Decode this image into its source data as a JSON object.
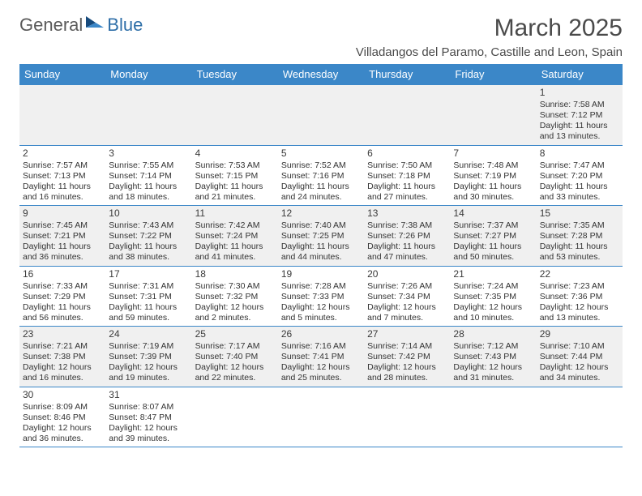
{
  "logo": {
    "general": "General",
    "blue": "Blue"
  },
  "title": "March 2025",
  "location": "Villadangos del Paramo, Castille and Leon, Spain",
  "dayHeaders": [
    "Sunday",
    "Monday",
    "Tuesday",
    "Wednesday",
    "Thursday",
    "Friday",
    "Saturday"
  ],
  "colors": {
    "headerBg": "#3b87c8",
    "headerFg": "#ffffff",
    "rowAlt": "#f0f0f0",
    "border": "#3b87c8"
  },
  "weeks": [
    [
      null,
      null,
      null,
      null,
      null,
      null,
      {
        "n": "1",
        "sr": "Sunrise: 7:58 AM",
        "ss": "Sunset: 7:12 PM",
        "dl1": "Daylight: 11 hours",
        "dl2": "and 13 minutes."
      }
    ],
    [
      {
        "n": "2",
        "sr": "Sunrise: 7:57 AM",
        "ss": "Sunset: 7:13 PM",
        "dl1": "Daylight: 11 hours",
        "dl2": "and 16 minutes."
      },
      {
        "n": "3",
        "sr": "Sunrise: 7:55 AM",
        "ss": "Sunset: 7:14 PM",
        "dl1": "Daylight: 11 hours",
        "dl2": "and 18 minutes."
      },
      {
        "n": "4",
        "sr": "Sunrise: 7:53 AM",
        "ss": "Sunset: 7:15 PM",
        "dl1": "Daylight: 11 hours",
        "dl2": "and 21 minutes."
      },
      {
        "n": "5",
        "sr": "Sunrise: 7:52 AM",
        "ss": "Sunset: 7:16 PM",
        "dl1": "Daylight: 11 hours",
        "dl2": "and 24 minutes."
      },
      {
        "n": "6",
        "sr": "Sunrise: 7:50 AM",
        "ss": "Sunset: 7:18 PM",
        "dl1": "Daylight: 11 hours",
        "dl2": "and 27 minutes."
      },
      {
        "n": "7",
        "sr": "Sunrise: 7:48 AM",
        "ss": "Sunset: 7:19 PM",
        "dl1": "Daylight: 11 hours",
        "dl2": "and 30 minutes."
      },
      {
        "n": "8",
        "sr": "Sunrise: 7:47 AM",
        "ss": "Sunset: 7:20 PM",
        "dl1": "Daylight: 11 hours",
        "dl2": "and 33 minutes."
      }
    ],
    [
      {
        "n": "9",
        "sr": "Sunrise: 7:45 AM",
        "ss": "Sunset: 7:21 PM",
        "dl1": "Daylight: 11 hours",
        "dl2": "and 36 minutes."
      },
      {
        "n": "10",
        "sr": "Sunrise: 7:43 AM",
        "ss": "Sunset: 7:22 PM",
        "dl1": "Daylight: 11 hours",
        "dl2": "and 38 minutes."
      },
      {
        "n": "11",
        "sr": "Sunrise: 7:42 AM",
        "ss": "Sunset: 7:24 PM",
        "dl1": "Daylight: 11 hours",
        "dl2": "and 41 minutes."
      },
      {
        "n": "12",
        "sr": "Sunrise: 7:40 AM",
        "ss": "Sunset: 7:25 PM",
        "dl1": "Daylight: 11 hours",
        "dl2": "and 44 minutes."
      },
      {
        "n": "13",
        "sr": "Sunrise: 7:38 AM",
        "ss": "Sunset: 7:26 PM",
        "dl1": "Daylight: 11 hours",
        "dl2": "and 47 minutes."
      },
      {
        "n": "14",
        "sr": "Sunrise: 7:37 AM",
        "ss": "Sunset: 7:27 PM",
        "dl1": "Daylight: 11 hours",
        "dl2": "and 50 minutes."
      },
      {
        "n": "15",
        "sr": "Sunrise: 7:35 AM",
        "ss": "Sunset: 7:28 PM",
        "dl1": "Daylight: 11 hours",
        "dl2": "and 53 minutes."
      }
    ],
    [
      {
        "n": "16",
        "sr": "Sunrise: 7:33 AM",
        "ss": "Sunset: 7:29 PM",
        "dl1": "Daylight: 11 hours",
        "dl2": "and 56 minutes."
      },
      {
        "n": "17",
        "sr": "Sunrise: 7:31 AM",
        "ss": "Sunset: 7:31 PM",
        "dl1": "Daylight: 11 hours",
        "dl2": "and 59 minutes."
      },
      {
        "n": "18",
        "sr": "Sunrise: 7:30 AM",
        "ss": "Sunset: 7:32 PM",
        "dl1": "Daylight: 12 hours",
        "dl2": "and 2 minutes."
      },
      {
        "n": "19",
        "sr": "Sunrise: 7:28 AM",
        "ss": "Sunset: 7:33 PM",
        "dl1": "Daylight: 12 hours",
        "dl2": "and 5 minutes."
      },
      {
        "n": "20",
        "sr": "Sunrise: 7:26 AM",
        "ss": "Sunset: 7:34 PM",
        "dl1": "Daylight: 12 hours",
        "dl2": "and 7 minutes."
      },
      {
        "n": "21",
        "sr": "Sunrise: 7:24 AM",
        "ss": "Sunset: 7:35 PM",
        "dl1": "Daylight: 12 hours",
        "dl2": "and 10 minutes."
      },
      {
        "n": "22",
        "sr": "Sunrise: 7:23 AM",
        "ss": "Sunset: 7:36 PM",
        "dl1": "Daylight: 12 hours",
        "dl2": "and 13 minutes."
      }
    ],
    [
      {
        "n": "23",
        "sr": "Sunrise: 7:21 AM",
        "ss": "Sunset: 7:38 PM",
        "dl1": "Daylight: 12 hours",
        "dl2": "and 16 minutes."
      },
      {
        "n": "24",
        "sr": "Sunrise: 7:19 AM",
        "ss": "Sunset: 7:39 PM",
        "dl1": "Daylight: 12 hours",
        "dl2": "and 19 minutes."
      },
      {
        "n": "25",
        "sr": "Sunrise: 7:17 AM",
        "ss": "Sunset: 7:40 PM",
        "dl1": "Daylight: 12 hours",
        "dl2": "and 22 minutes."
      },
      {
        "n": "26",
        "sr": "Sunrise: 7:16 AM",
        "ss": "Sunset: 7:41 PM",
        "dl1": "Daylight: 12 hours",
        "dl2": "and 25 minutes."
      },
      {
        "n": "27",
        "sr": "Sunrise: 7:14 AM",
        "ss": "Sunset: 7:42 PM",
        "dl1": "Daylight: 12 hours",
        "dl2": "and 28 minutes."
      },
      {
        "n": "28",
        "sr": "Sunrise: 7:12 AM",
        "ss": "Sunset: 7:43 PM",
        "dl1": "Daylight: 12 hours",
        "dl2": "and 31 minutes."
      },
      {
        "n": "29",
        "sr": "Sunrise: 7:10 AM",
        "ss": "Sunset: 7:44 PM",
        "dl1": "Daylight: 12 hours",
        "dl2": "and 34 minutes."
      }
    ],
    [
      {
        "n": "30",
        "sr": "Sunrise: 8:09 AM",
        "ss": "Sunset: 8:46 PM",
        "dl1": "Daylight: 12 hours",
        "dl2": "and 36 minutes."
      },
      {
        "n": "31",
        "sr": "Sunrise: 8:07 AM",
        "ss": "Sunset: 8:47 PM",
        "dl1": "Daylight: 12 hours",
        "dl2": "and 39 minutes."
      },
      null,
      null,
      null,
      null,
      null
    ]
  ]
}
